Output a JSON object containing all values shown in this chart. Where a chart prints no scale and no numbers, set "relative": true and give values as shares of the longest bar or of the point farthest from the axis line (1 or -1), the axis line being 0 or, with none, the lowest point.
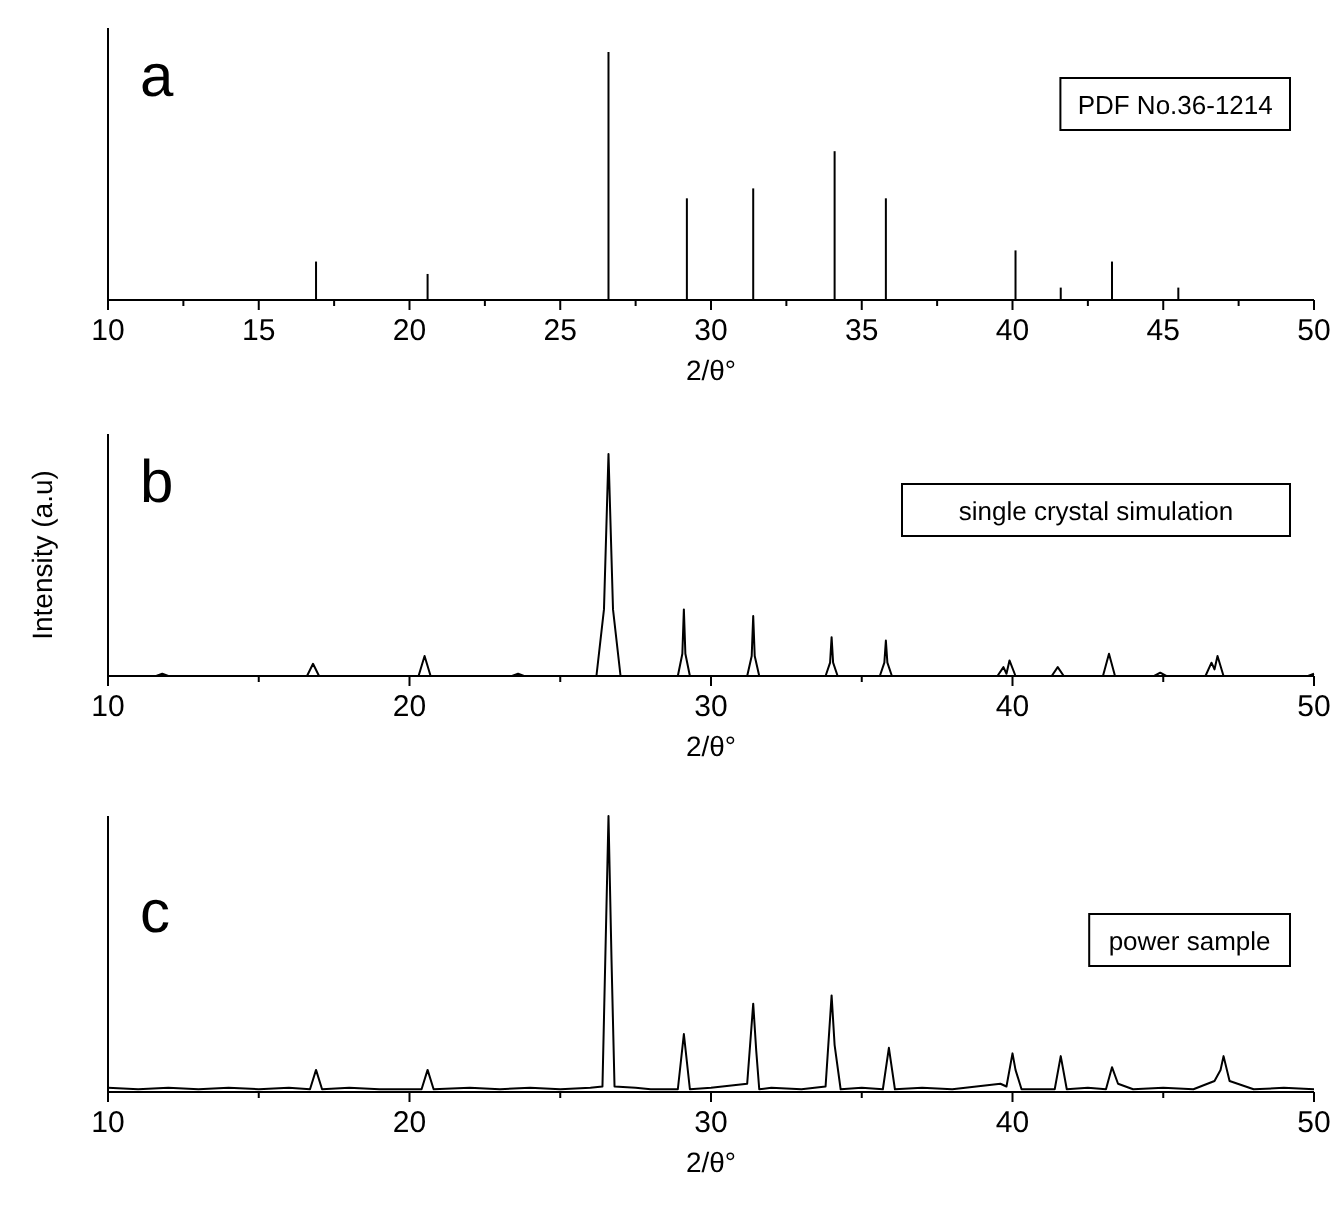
{
  "chart_data": [
    {
      "type": "bar",
      "relative": true,
      "xlabel": "2/θ°",
      "annotations": [
        "a",
        "PDF No.36-1214"
      ],
      "xlim": [
        10,
        50
      ],
      "xticks": [
        10,
        15,
        20,
        25,
        30,
        35,
        40,
        45,
        50
      ],
      "color": "#000000",
      "x": [
        16.9,
        20.6,
        26.6,
        29.2,
        31.4,
        34.1,
        35.8,
        40.1,
        41.6,
        43.3,
        45.5
      ],
      "values": [
        0.155,
        0.105,
        1,
        0.41,
        0.45,
        0.6,
        0.41,
        0.2,
        0.05,
        0.155,
        0.05
      ]
    },
    {
      "type": "line",
      "relative": true,
      "xlabel": "2/θ°",
      "ylabel": "Intensity (a.u)",
      "annotations": [
        "b",
        "single crystal simulation"
      ],
      "xlim": [
        10,
        50
      ],
      "xticks": [
        10,
        20,
        30,
        40,
        50
      ],
      "color": "#000000",
      "x": [
        10,
        11.6,
        11.8,
        12,
        16.6,
        16.8,
        17,
        20.3,
        20.5,
        20.7,
        23.4,
        23.6,
        23.8,
        26.2,
        26.45,
        26.6,
        26.75,
        27.0,
        28.9,
        29.05,
        29.1,
        29.15,
        29.3,
        31.2,
        31.35,
        31.4,
        31.45,
        31.6,
        33.8,
        33.95,
        34.0,
        34.05,
        34.2,
        35.6,
        35.75,
        35.8,
        35.85,
        36.0,
        39.5,
        39.7,
        39.8,
        39.9,
        40.1,
        41.3,
        41.5,
        41.7,
        43.0,
        43.2,
        43.4,
        44.7,
        44.9,
        45.1,
        46.4,
        46.6,
        46.7,
        46.8,
        47.0,
        49.8,
        50
      ],
      "values": [
        0,
        0,
        0.01,
        0,
        0,
        0.055,
        0,
        0,
        0.09,
        0,
        0,
        0.01,
        0,
        0,
        0.3,
        1,
        0.3,
        0,
        0,
        0.1,
        0.3,
        0.1,
        0,
        0,
        0.09,
        0.27,
        0.09,
        0,
        0,
        0.06,
        0.175,
        0.06,
        0,
        0,
        0.06,
        0.16,
        0.06,
        0,
        0,
        0.04,
        0.01,
        0.07,
        0,
        0,
        0.04,
        0,
        0,
        0.1,
        0,
        0,
        0.015,
        0,
        0,
        0.06,
        0.03,
        0.09,
        0,
        0,
        0.01
      ]
    },
    {
      "type": "line",
      "relative": true,
      "xlabel": "2/θ°",
      "annotations": [
        "c",
        "power sample"
      ],
      "xlim": [
        10,
        50
      ],
      "xticks": [
        10,
        20,
        30,
        40,
        50
      ],
      "color": "#000000",
      "x": [
        10,
        11,
        12,
        13,
        14,
        15,
        16,
        16.7,
        16.9,
        17.1,
        18,
        19,
        20.4,
        20.6,
        20.8,
        22,
        23,
        24,
        25,
        26,
        26.4,
        26.6,
        26.7,
        26.8,
        27.5,
        28,
        28.9,
        29.1,
        29.3,
        30,
        31.2,
        31.4,
        31.5,
        31.6,
        32,
        33,
        33.8,
        34.0,
        34.1,
        34.3,
        35,
        35.7,
        35.9,
        36.1,
        37,
        38,
        39.6,
        39.8,
        40.0,
        40.1,
        40.3,
        41.4,
        41.6,
        41.8,
        42.5,
        43.1,
        43.3,
        43.5,
        44,
        45,
        46,
        46.7,
        46.9,
        47.0,
        47.2,
        48,
        49,
        50
      ],
      "values": [
        0.015,
        0.01,
        0.015,
        0.01,
        0.015,
        0.01,
        0.015,
        0.01,
        0.08,
        0.01,
        0.015,
        0.01,
        0.01,
        0.08,
        0.01,
        0.015,
        0.01,
        0.015,
        0.01,
        0.015,
        0.02,
        1,
        0.48,
        0.02,
        0.015,
        0.01,
        0.01,
        0.21,
        0.01,
        0.015,
        0.03,
        0.32,
        0.15,
        0.01,
        0.015,
        0.01,
        0.02,
        0.35,
        0.17,
        0.01,
        0.015,
        0.01,
        0.16,
        0.01,
        0.015,
        0.01,
        0.03,
        0.02,
        0.14,
        0.08,
        0.01,
        0.01,
        0.13,
        0.01,
        0.015,
        0.01,
        0.09,
        0.03,
        0.01,
        0.015,
        0.01,
        0.04,
        0.08,
        0.13,
        0.04,
        0.01,
        0.015,
        0.01
      ]
    }
  ]
}
